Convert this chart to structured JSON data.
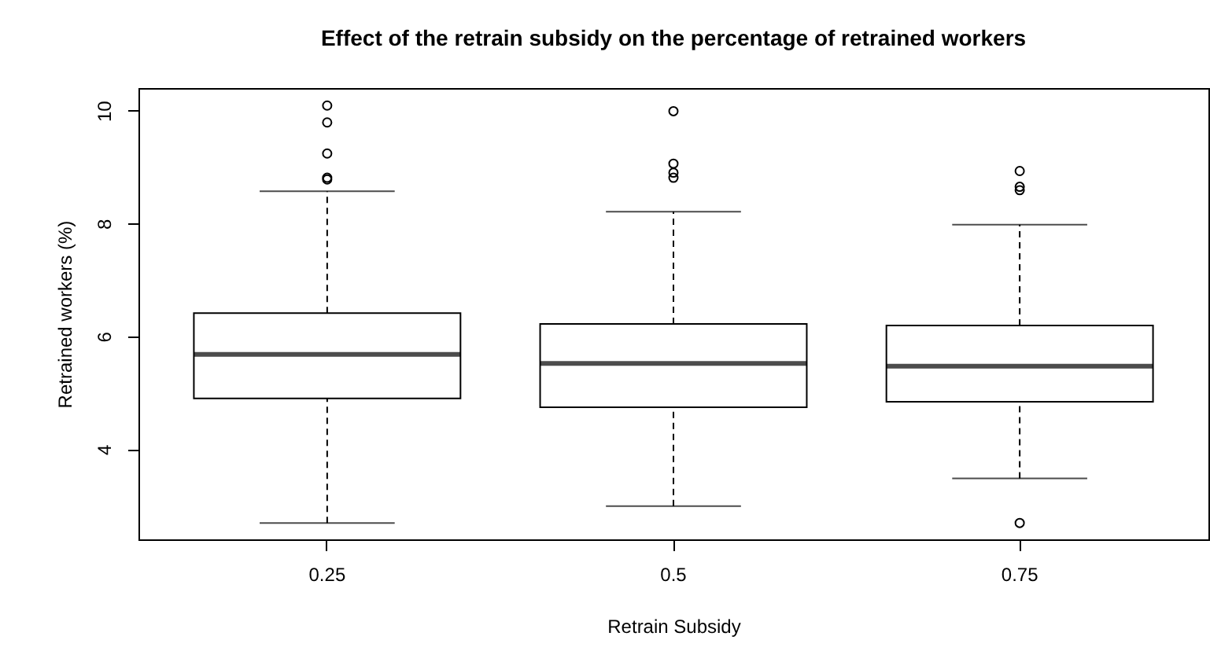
{
  "chart_data": {
    "type": "box",
    "title": "Effect of the retrain subsidy on the percentage of retrained workers",
    "xlabel": "Retrain Subsidy",
    "ylabel": "Retrained workers (%)",
    "categories": [
      "0.25",
      "0.5",
      "0.75"
    ],
    "boxes": [
      {
        "low": 2.69,
        "q1": 4.9,
        "median": 5.68,
        "q3": 6.41,
        "high": 8.57,
        "outliers": [
          10.09,
          9.79,
          9.24,
          8.81,
          8.78
        ]
      },
      {
        "low": 2.99,
        "q1": 4.74,
        "median": 5.52,
        "q3": 6.22,
        "high": 8.21,
        "outliers": [
          9.99,
          9.06,
          8.9,
          8.81
        ]
      },
      {
        "low": 3.48,
        "q1": 4.84,
        "median": 5.47,
        "q3": 6.19,
        "high": 7.98,
        "outliers": [
          8.93,
          8.65,
          8.59,
          2.69
        ]
      }
    ],
    "ylim": [
      2.4,
      10.4
    ],
    "yticks": [
      4,
      6,
      8,
      10
    ],
    "grid": false
  }
}
